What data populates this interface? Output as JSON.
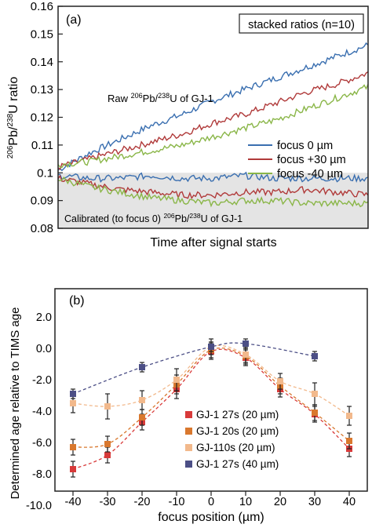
{
  "chart_data": [
    {
      "type": "line",
      "panel_label": "(a)",
      "title_box": "stacked ratios (n=10)",
      "xlabel": "Time after signal starts",
      "ylabel": "206Pb/238U ratio",
      "ylabel_parts": {
        "sup1": "206",
        "base1": "Pb/",
        "sup2": "238",
        "base2": "U ratio"
      },
      "ylim": [
        0.08,
        0.16
      ],
      "yticks": [
        "0.08",
        "0.09",
        "0.1",
        "0.11",
        "0.12",
        "0.13",
        "0.14",
        "0.15",
        "0.16"
      ],
      "shaded_band": [
        0.08,
        0.1
      ],
      "annotations": {
        "raw": {
          "t1": "Raw ",
          "sup1": "206",
          "t2": "Pb/",
          "sup2": "238",
          "t3": "U of GJ-1"
        },
        "calibrated": {
          "t1": "Calibrated (to focus 0) ",
          "sup1": "206",
          "t2": "Pb/",
          "sup2": "238",
          "t3": "U of GJ-1"
        }
      },
      "legend_position": "right",
      "series": [
        {
          "name": "focus 0 µm",
          "color": "#3a6fb0",
          "group": "raw",
          "x": [
            0,
            0.1,
            0.2,
            0.3,
            0.4,
            0.5,
            0.6,
            0.7,
            0.8,
            0.9,
            1.0
          ],
          "values": [
            0.101,
            0.107,
            0.112,
            0.117,
            0.121,
            0.126,
            0.13,
            0.134,
            0.138,
            0.142,
            0.146
          ]
        },
        {
          "name": "focus +30 µm",
          "color": "#b03a3a",
          "group": "raw",
          "x": [
            0,
            0.1,
            0.2,
            0.3,
            0.4,
            0.5,
            0.6,
            0.7,
            0.8,
            0.9,
            1.0
          ],
          "values": [
            0.102,
            0.105,
            0.108,
            0.111,
            0.114,
            0.118,
            0.121,
            0.125,
            0.129,
            0.132,
            0.136
          ]
        },
        {
          "name": "focus -40 µm",
          "color": "#8ab648",
          "group": "raw",
          "x": [
            0,
            0.1,
            0.2,
            0.3,
            0.4,
            0.5,
            0.6,
            0.7,
            0.8,
            0.9,
            1.0
          ],
          "values": [
            0.103,
            0.104,
            0.106,
            0.108,
            0.11,
            0.113,
            0.116,
            0.119,
            0.123,
            0.127,
            0.131
          ]
        },
        {
          "name": "focus 0 µm",
          "color": "#3a6fb0",
          "group": "calibrated",
          "x": [
            0,
            0.1,
            0.2,
            0.3,
            0.4,
            0.5,
            0.6,
            0.7,
            0.8,
            0.9,
            1.0
          ],
          "values": [
            0.099,
            0.098,
            0.098,
            0.099,
            0.098,
            0.098,
            0.099,
            0.098,
            0.098,
            0.098,
            0.098
          ]
        },
        {
          "name": "focus +30 µm",
          "color": "#b03a3a",
          "group": "calibrated",
          "x": [
            0,
            0.1,
            0.2,
            0.3,
            0.4,
            0.5,
            0.6,
            0.7,
            0.8,
            0.9,
            1.0
          ],
          "values": [
            0.098,
            0.096,
            0.094,
            0.093,
            0.092,
            0.092,
            0.093,
            0.093,
            0.094,
            0.093,
            0.092
          ]
        },
        {
          "name": "focus -40 µm",
          "color": "#8ab648",
          "group": "calibrated",
          "x": [
            0,
            0.1,
            0.2,
            0.3,
            0.4,
            0.5,
            0.6,
            0.7,
            0.8,
            0.9,
            1.0
          ],
          "values": [
            0.098,
            0.095,
            0.093,
            0.091,
            0.09,
            0.089,
            0.09,
            0.09,
            0.089,
            0.089,
            0.089
          ]
        }
      ]
    },
    {
      "type": "scatter",
      "panel_label": "(b)",
      "xlabel": "focus position (µm)",
      "ylabel": "Determined age relative to TIMS age",
      "xlim": [
        -45,
        45
      ],
      "ylim": [
        -11,
        3
      ],
      "xticks": [
        "-40",
        "-30",
        "-20",
        "-10",
        "0",
        "10",
        "20",
        "30",
        "40"
      ],
      "yticks": [
        "2.0",
        "0.0",
        "-2.0",
        "-4.0",
        "-6.0",
        "-8.0",
        "-10.0"
      ],
      "legend_position": "lower-center",
      "series": [
        {
          "name": "GJ-1 27s (20 µm)",
          "color": "#d83a3a",
          "x": [
            -40,
            -30,
            -20,
            -10,
            0,
            10,
            20,
            30,
            40
          ],
          "values": [
            -7.7,
            -6.8,
            -4.7,
            -2.6,
            -0.2,
            -0.6,
            -2.6,
            -4.2,
            -6.4
          ],
          "errors": [
            0.5,
            0.5,
            0.5,
            0.6,
            0.5,
            0.5,
            0.5,
            0.5,
            0.5
          ]
        },
        {
          "name": "GJ-1 20s (20 µm)",
          "color": "#d9782e",
          "x": [
            -40,
            -30,
            -20,
            -10,
            0,
            10,
            20,
            30,
            40
          ],
          "values": [
            -6.3,
            -6.1,
            -4.4,
            -2.3,
            -0.1,
            -0.5,
            -2.4,
            -4.1,
            -5.9
          ],
          "errors": [
            0.5,
            0.5,
            0.5,
            0.6,
            0.5,
            0.5,
            0.5,
            0.5,
            0.5
          ]
        },
        {
          "name": "GJ-110s (20 µm)",
          "color": "#f2b98c",
          "x": [
            -40,
            -30,
            -20,
            -10,
            0,
            10,
            20,
            30,
            40
          ],
          "values": [
            -3.5,
            -3.7,
            -3.3,
            -2.0,
            0.1,
            -0.4,
            -2.1,
            -2.9,
            -4.3
          ],
          "errors": [
            0.6,
            0.8,
            0.6,
            0.7,
            0.5,
            0.5,
            0.5,
            0.7,
            0.6
          ]
        },
        {
          "name": "GJ-1 27s (40 µm)",
          "color": "#4c4f86",
          "x": [
            -40,
            -30,
            -20,
            -10,
            0,
            10,
            20,
            30,
            40
          ],
          "values": [
            -2.9,
            null,
            -1.2,
            null,
            0.1,
            0.3,
            null,
            -0.5,
            null
          ],
          "errors": [
            0.3,
            null,
            0.3,
            null,
            0.3,
            0.3,
            null,
            0.3,
            null
          ]
        }
      ]
    }
  ]
}
